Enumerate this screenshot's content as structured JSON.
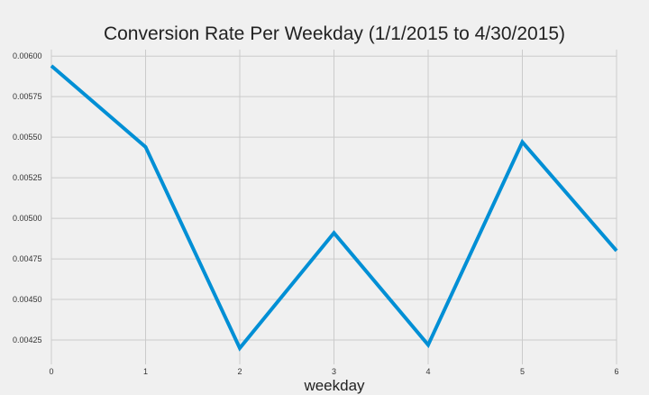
{
  "chart_data": {
    "type": "line",
    "title": "Conversion Rate Per Weekday (1/1/2015 to 4/30/2015)",
    "xlabel": "weekday",
    "ylabel": "",
    "x": [
      0,
      1,
      2,
      3,
      4,
      5,
      6
    ],
    "series": [
      {
        "values": [
          0.00594,
          0.00544,
          0.0042,
          0.00491,
          0.00422,
          0.00547,
          0.0048
        ]
      }
    ],
    "xlim": [
      0,
      6
    ],
    "ylim": [
      0.0041,
      0.00604
    ],
    "xticks": [
      "0",
      "1",
      "2",
      "3",
      "4",
      "5",
      "6"
    ],
    "yticks": [
      "0.00425",
      "0.00450",
      "0.00475",
      "0.00500",
      "0.00525",
      "0.00550",
      "0.00575",
      "0.00600"
    ],
    "ytick_values": [
      0.00425,
      0.0045,
      0.00475,
      0.005,
      0.00525,
      0.0055,
      0.00575,
      0.006
    ],
    "grid": true,
    "line_color": "#008fd5",
    "grid_color": "#cbcbcb",
    "background": "#f0f0f0"
  }
}
